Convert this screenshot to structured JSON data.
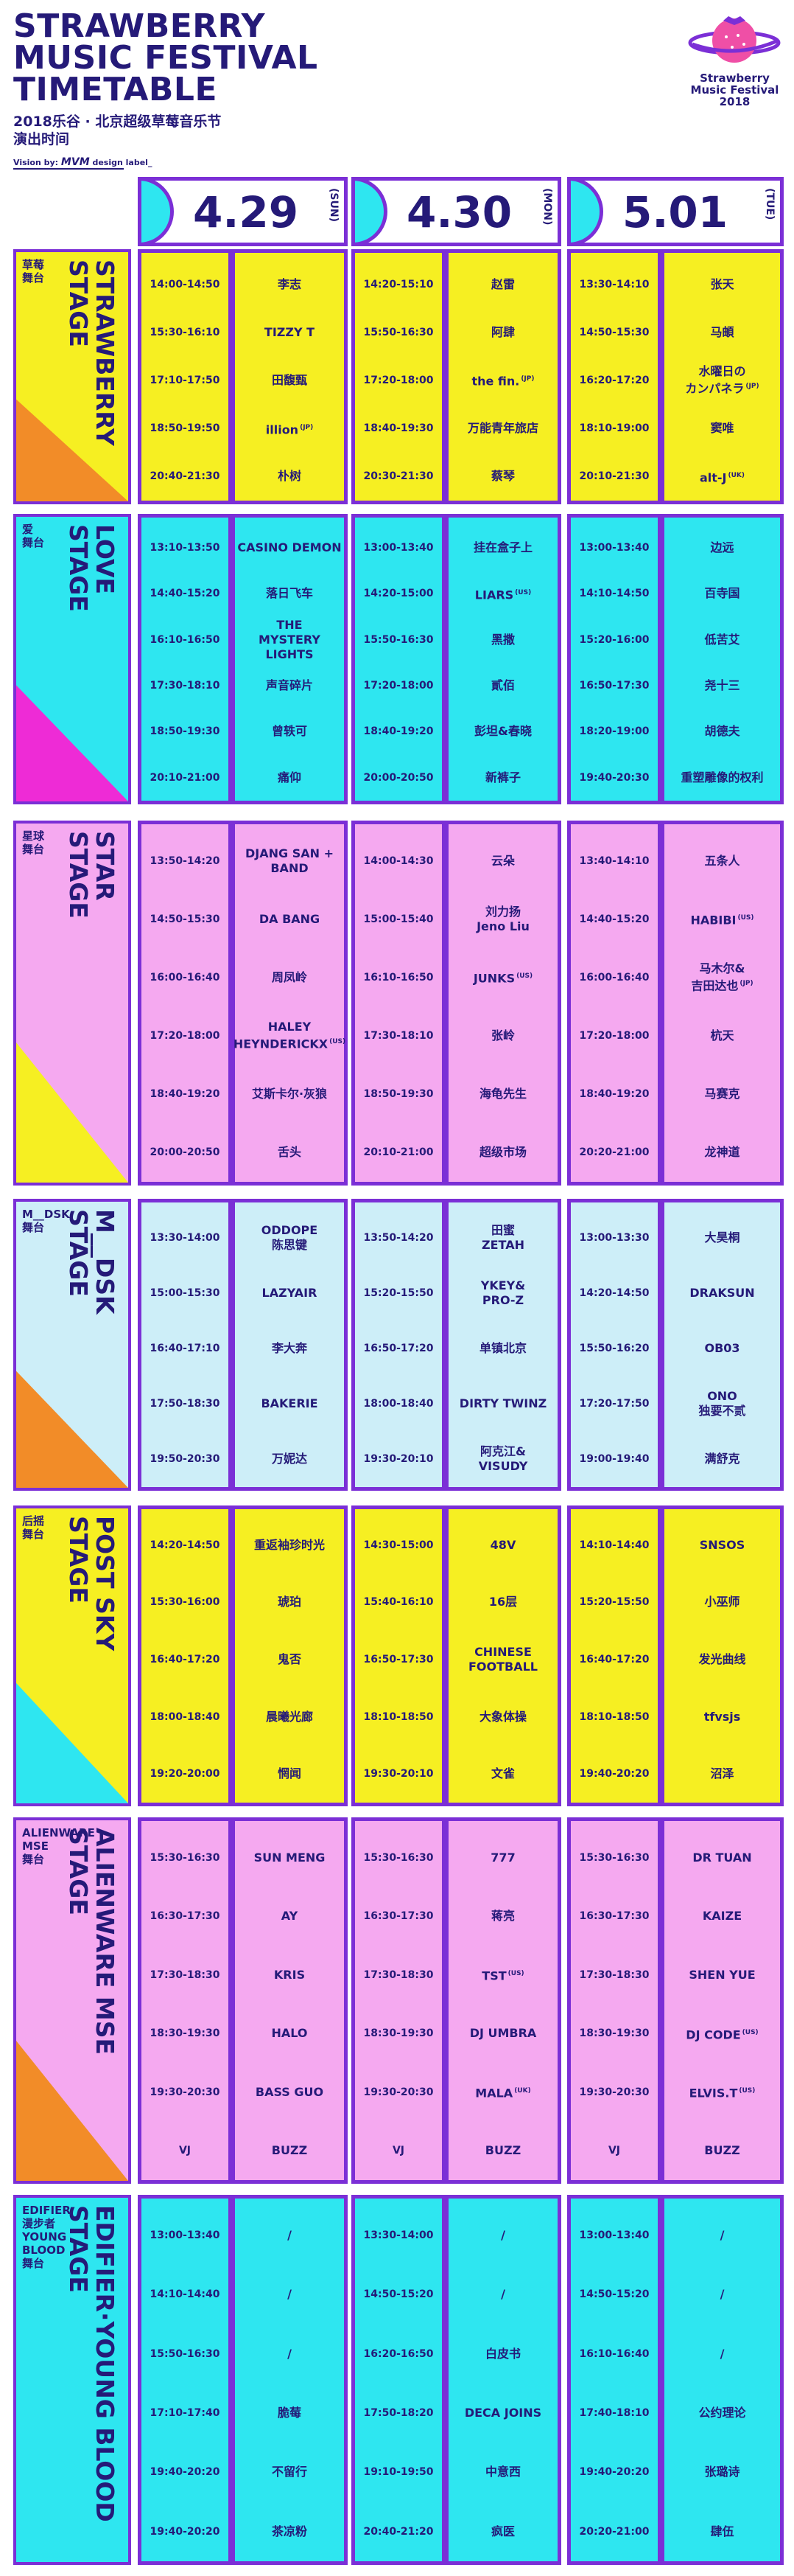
{
  "header": {
    "title": [
      "STRAWBERRY",
      "MUSIC FESTIVAL",
      "TIMETABLE"
    ],
    "subtitle": "2018乐谷 · 北京超级草莓音乐节",
    "subtitle2": "演出时间",
    "credit": "Vision by:",
    "credit_brand": "MVM",
    "credit_tail": "design label_",
    "logo": [
      "Strawberry",
      "Music Festival",
      "2018"
    ]
  },
  "dates": [
    {
      "date": "4.29",
      "weekday": "(SUN)"
    },
    {
      "date": "4.30",
      "weekday": "(MON)"
    },
    {
      "date": "5.01",
      "weekday": "(TUE)"
    }
  ],
  "stages": [
    {
      "name_cn": "草莓\n舞台",
      "name_en": "STRAWBERRY\nSTAGE",
      "days": [
        [
          {
            "time": "14:00-14:50",
            "artist": "李志"
          },
          {
            "time": "15:30-16:10",
            "artist": "TIZZY T"
          },
          {
            "time": "17:10-17:50",
            "artist": "田馥甄"
          },
          {
            "time": "18:50-19:50",
            "artist": "illion",
            "tag": "(JP)"
          },
          {
            "time": "20:40-21:30",
            "artist": "朴树"
          }
        ],
        [
          {
            "time": "14:20-15:10",
            "artist": "赵雷"
          },
          {
            "time": "15:50-16:30",
            "artist": "阿肆"
          },
          {
            "time": "17:20-18:00",
            "artist": "the fin.",
            "tag": "(JP)"
          },
          {
            "time": "18:40-19:30",
            "artist": "万能青年旅店"
          },
          {
            "time": "20:30-21:30",
            "artist": "蔡琴"
          }
        ],
        [
          {
            "time": "13:30-14:10",
            "artist": "张天"
          },
          {
            "time": "14:50-15:30",
            "artist": "马頔"
          },
          {
            "time": "16:20-17:20",
            "artist": "水曜日の\nカンパネラ",
            "tag": "(JP)"
          },
          {
            "time": "18:10-19:00",
            "artist": "窦唯"
          },
          {
            "time": "20:10-21:30",
            "artist": "alt-J",
            "tag": "(UK)"
          }
        ]
      ]
    },
    {
      "name_cn": "爱\n舞台",
      "name_en": "LOVE\nSTAGE",
      "days": [
        [
          {
            "time": "13:10-13:50",
            "artist": "CASINO DEMON"
          },
          {
            "time": "14:40-15:20",
            "artist": "落日飞车"
          },
          {
            "time": "16:10-16:50",
            "artist": "THE\nMYSTERY LIGHTS"
          },
          {
            "time": "17:30-18:10",
            "artist": "声音碎片"
          },
          {
            "time": "18:50-19:30",
            "artist": "曾轶可"
          },
          {
            "time": "20:10-21:00",
            "artist": "痛仰"
          }
        ],
        [
          {
            "time": "13:00-13:40",
            "artist": "挂在盒子上"
          },
          {
            "time": "14:20-15:00",
            "artist": "LIARS",
            "tag": "(US)"
          },
          {
            "time": "15:50-16:30",
            "artist": "黑撒"
          },
          {
            "time": "17:20-18:00",
            "artist": "貳佰"
          },
          {
            "time": "18:40-19:20",
            "artist": "彭坦&春晓"
          },
          {
            "time": "20:00-20:50",
            "artist": "新裤子"
          }
        ],
        [
          {
            "time": "13:00-13:40",
            "artist": "边远"
          },
          {
            "time": "14:10-14:50",
            "artist": "百寺国"
          },
          {
            "time": "15:20-16:00",
            "artist": "低苦艾"
          },
          {
            "time": "16:50-17:30",
            "artist": "尧十三"
          },
          {
            "time": "18:20-19:00",
            "artist": "胡德夫"
          },
          {
            "time": "19:40-20:30",
            "artist": "重塑雕像的权利"
          }
        ]
      ]
    },
    {
      "name_cn": "星球\n舞台",
      "name_en": "STAR\nSTAGE",
      "days": [
        [
          {
            "time": "13:50-14:20",
            "artist": "DJANG SAN +\nBAND"
          },
          {
            "time": "14:50-15:30",
            "artist": "DA BANG"
          },
          {
            "time": "16:00-16:40",
            "artist": "周凤岭"
          },
          {
            "time": "17:20-18:00",
            "artist": "HALEY\nHEYNDERICKX",
            "tag": "(US)"
          },
          {
            "time": "18:40-19:20",
            "artist": "艾斯卡尔·灰狼"
          },
          {
            "time": "20:00-20:50",
            "artist": "舌头"
          }
        ],
        [
          {
            "time": "14:00-14:30",
            "artist": "云朵"
          },
          {
            "time": "15:00-15:40",
            "artist": "刘力扬\nJeno Liu"
          },
          {
            "time": "16:10-16:50",
            "artist": "JUNKS",
            "tag": "(US)"
          },
          {
            "time": "17:30-18:10",
            "artist": "张岭"
          },
          {
            "time": "18:50-19:30",
            "artist": "海龟先生"
          },
          {
            "time": "20:10-21:00",
            "artist": "超级市场"
          }
        ],
        [
          {
            "time": "13:40-14:10",
            "artist": "五条人"
          },
          {
            "time": "14:40-15:20",
            "artist": "HABIBI",
            "tag": "(US)"
          },
          {
            "time": "16:00-16:40",
            "artist": "马木尔&\n吉田达也",
            "tag": "(JP)"
          },
          {
            "time": "17:20-18:00",
            "artist": "杭天"
          },
          {
            "time": "18:40-19:20",
            "artist": "马赛克"
          },
          {
            "time": "20:20-21:00",
            "artist": "龙神道"
          }
        ]
      ]
    },
    {
      "name_cn": "M__DSK\n舞台",
      "name_en": "M__DSK\nSTAGE",
      "days": [
        [
          {
            "time": "13:30-14:00",
            "artist": "ODDOPE\n陈思键"
          },
          {
            "time": "15:00-15:30",
            "artist": "LAZYAIR"
          },
          {
            "time": "16:40-17:10",
            "artist": "李大奔"
          },
          {
            "time": "17:50-18:30",
            "artist": "BAKERIE"
          },
          {
            "time": "19:50-20:30",
            "artist": "万妮达"
          }
        ],
        [
          {
            "time": "13:50-14:20",
            "artist": "田蜜\nZETAH"
          },
          {
            "time": "15:20-15:50",
            "artist": "YKEY&\nPRO-Z"
          },
          {
            "time": "16:50-17:20",
            "artist": "单镇北京"
          },
          {
            "time": "18:00-18:40",
            "artist": "DIRTY TWINZ"
          },
          {
            "time": "19:30-20:10",
            "artist": "阿克江&\nVISUDY"
          }
        ],
        [
          {
            "time": "13:00-13:30",
            "artist": "大昊桐"
          },
          {
            "time": "14:20-14:50",
            "artist": "DRAKSUN"
          },
          {
            "time": "15:50-16:20",
            "artist": "OB03"
          },
          {
            "time": "17:20-17:50",
            "artist": "ONO\n独要不贰"
          },
          {
            "time": "19:00-19:40",
            "artist": "满舒克"
          }
        ]
      ]
    },
    {
      "name_cn": "后摇\n舞台",
      "name_en": "POST SKY\nSTAGE",
      "days": [
        [
          {
            "time": "14:20-14:50",
            "artist": "重返袖珍时光"
          },
          {
            "time": "15:30-16:00",
            "artist": "琥珀"
          },
          {
            "time": "16:40-17:20",
            "artist": "鬼否"
          },
          {
            "time": "18:00-18:40",
            "artist": "晨曦光廊"
          },
          {
            "time": "19:20-20:00",
            "artist": "惘闻"
          }
        ],
        [
          {
            "time": "14:30-15:00",
            "artist": "48V"
          },
          {
            "time": "15:40-16:10",
            "artist": "16层"
          },
          {
            "time": "16:50-17:30",
            "artist": "CHINESE\nFOOTBALL"
          },
          {
            "time": "18:10-18:50",
            "artist": "大象体操"
          },
          {
            "time": "19:30-20:10",
            "artist": "文雀"
          }
        ],
        [
          {
            "time": "14:10-14:40",
            "artist": "SNSOS"
          },
          {
            "time": "15:20-15:50",
            "artist": "小巫师"
          },
          {
            "time": "16:40-17:20",
            "artist": "发光曲线"
          },
          {
            "time": "18:10-18:50",
            "artist": "tfvsjs"
          },
          {
            "time": "19:40-20:20",
            "artist": "沼泽"
          }
        ]
      ]
    },
    {
      "name_cn": "ALIENWARE\nMSE\n舞台",
      "name_en": "ALIENWARE MSE\nSTAGE",
      "days": [
        [
          {
            "time": "15:30-16:30",
            "artist": "SUN MENG"
          },
          {
            "time": "16:30-17:30",
            "artist": "AY"
          },
          {
            "time": "17:30-18:30",
            "artist": "KRIS"
          },
          {
            "time": "18:30-19:30",
            "artist": "HALO"
          },
          {
            "time": "19:30-20:30",
            "artist": "BASS GUO"
          },
          {
            "time": "VJ",
            "artist": "BUZZ"
          }
        ],
        [
          {
            "time": "15:30-16:30",
            "artist": "777"
          },
          {
            "time": "16:30-17:30",
            "artist": "蒋亮"
          },
          {
            "time": "17:30-18:30",
            "artist": "TST",
            "tag": "(US)"
          },
          {
            "time": "18:30-19:30",
            "artist": "DJ UMBRA"
          },
          {
            "time": "19:30-20:30",
            "artist": "MALA",
            "tag": "(UK)"
          },
          {
            "time": "VJ",
            "artist": "BUZZ"
          }
        ],
        [
          {
            "time": "15:30-16:30",
            "artist": "DR TUAN"
          },
          {
            "time": "16:30-17:30",
            "artist": "KAIZE"
          },
          {
            "time": "17:30-18:30",
            "artist": "SHEN YUE"
          },
          {
            "time": "18:30-19:30",
            "artist": "DJ CODE",
            "tag": "(US)"
          },
          {
            "time": "19:30-20:30",
            "artist": "ELVIS.T",
            "tag": "(US)"
          },
          {
            "time": "VJ",
            "artist": "BUZZ"
          }
        ]
      ]
    },
    {
      "name_cn": "EDIFIER\n漫步者\nYOUNG\nBLOOD\n舞台",
      "name_en": "EDIFIER·YOUNG BLOOD\nSTAGE",
      "days": [
        [
          {
            "time": "13:00-13:40",
            "artist": "/"
          },
          {
            "time": "14:10-14:40",
            "artist": "/"
          },
          {
            "time": "15:50-16:30",
            "artist": "/"
          },
          {
            "time": "17:10-17:40",
            "artist": "脆莓"
          },
          {
            "time": "19:40-20:20",
            "artist": "不留行"
          },
          {
            "time": "19:40-20:20",
            "artist": "茶凉粉"
          }
        ],
        [
          {
            "time": "13:30-14:00",
            "artist": "/"
          },
          {
            "time": "14:50-15:20",
            "artist": "/"
          },
          {
            "time": "16:20-16:50",
            "artist": "白皮书"
          },
          {
            "time": "17:50-18:20",
            "artist": "DECA JOINS"
          },
          {
            "time": "19:10-19:50",
            "artist": "中意西"
          },
          {
            "time": "20:40-21:20",
            "artist": "疯医"
          }
        ],
        [
          {
            "time": "13:00-13:40",
            "artist": "/"
          },
          {
            "time": "14:50-15:20",
            "artist": "/"
          },
          {
            "time": "16:10-16:40",
            "artist": "/"
          },
          {
            "time": "17:40-18:10",
            "artist": "公约理论"
          },
          {
            "time": "19:40-20:20",
            "artist": "张璐诗"
          },
          {
            "time": "20:20-21:00",
            "artist": "肆伍"
          }
        ]
      ]
    }
  ]
}
